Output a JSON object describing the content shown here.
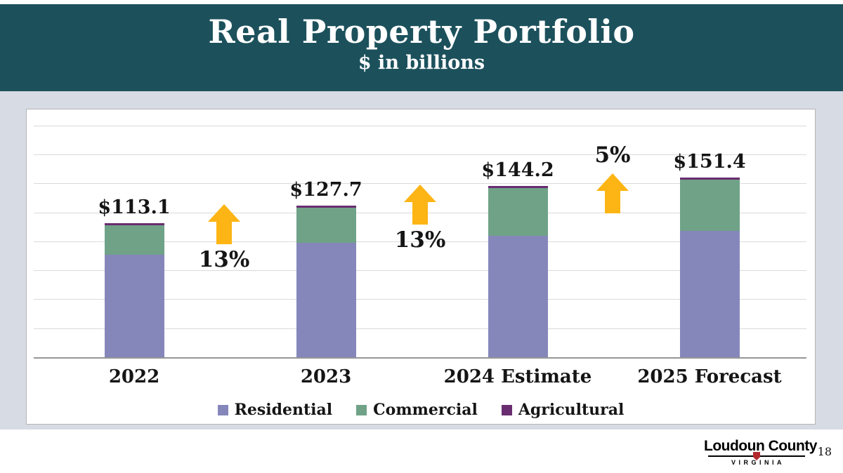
{
  "header": {
    "title": "Real Property Portfolio",
    "subtitle": "$ in billions"
  },
  "chart_data": {
    "type": "bar",
    "stacked": true,
    "title": "Real Property Portfolio",
    "units": "$ in billions",
    "categories": [
      "2022",
      "2023",
      "2024 Estimate",
      "2025 Forecast"
    ],
    "series": [
      {
        "name": "Residential",
        "color": "#8587bb",
        "values": [
          86.5,
          96.5,
          102.5,
          106.5
        ]
      },
      {
        "name": "Commercial",
        "color": "#6fa287",
        "values": [
          25.0,
          29.5,
          40.0,
          43.1
        ]
      },
      {
        "name": "Agricultural",
        "color": "#6a2d70",
        "values": [
          1.6,
          1.7,
          1.7,
          1.8
        ]
      }
    ],
    "totals": [
      113.1,
      127.7,
      144.2,
      151.4
    ],
    "total_labels": [
      "$113.1",
      "$127.7",
      "$144.2",
      "$151.4"
    ],
    "growth_annotations": [
      {
        "label": "13%",
        "between": [
          "2022",
          "2023"
        ]
      },
      {
        "label": "13%",
        "between": [
          "2023",
          "2024 Estimate"
        ]
      },
      {
        "label": "5%",
        "between": [
          "2024 Estimate",
          "2025 Forecast"
        ]
      }
    ],
    "arrow_color": "#fdb515",
    "gridlines": true,
    "legend_position": "bottom",
    "ylim": [
      0,
      200
    ]
  },
  "footer": {
    "logo_title": "Loudoun County",
    "logo_subtitle": "VIRGINIA",
    "page_number": "18"
  },
  "colors": {
    "header_background": "#1c515c",
    "body_background": "#d6dbe4",
    "panel_background": "#ffffff"
  }
}
